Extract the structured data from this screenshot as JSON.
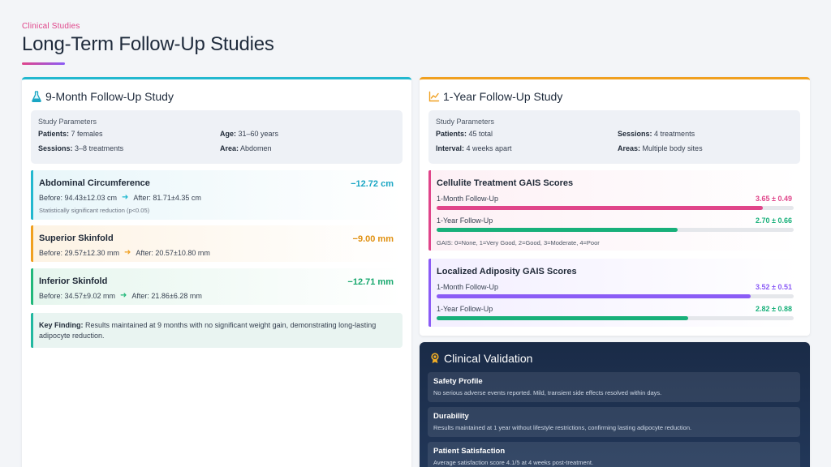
{
  "header": {
    "eyebrow": "Clinical Studies",
    "title": "Long-Term Follow-Up Studies"
  },
  "nine_month": {
    "title": "9-Month Follow-Up Study",
    "icon": "flask-icon",
    "accent": "#22b8cf",
    "params": {
      "title": "Study Parameters",
      "patients_label": "Patients:",
      "patients": "7 females",
      "age_label": "Age:",
      "age": "31–60 years",
      "sessions_label": "Sessions:",
      "sessions": "3–8 treatments",
      "area_label": "Area:",
      "area": "Abdomen"
    },
    "metrics": [
      {
        "name": "Abdominal Circumference",
        "before": "Before: 94.43±12.03 cm",
        "after": "After: 81.71±4.35 cm",
        "note": "Statistically significant reduction (p<0.05)",
        "change": "−12.72 cm",
        "color": "#22b8cf"
      },
      {
        "name": "Superior Skinfold",
        "before": "Before: 29.57±12.30 mm",
        "after": "After: 20.57±10.80 mm",
        "change": "−9.00 mm",
        "color": "#f0a020"
      },
      {
        "name": "Inferior Skinfold",
        "before": "Before: 34.57±9.02 mm",
        "after": "After: 21.86±6.28 mm",
        "change": "−12.71 mm",
        "color": "#22b87a"
      }
    ],
    "key_finding": {
      "label": "Key Finding:",
      "text": " Results maintained at 9 months with no significant weight gain, demonstrating long-lasting adipocyte reduction."
    }
  },
  "one_year": {
    "title": "1-Year Follow-Up Study",
    "icon": "chart-line-icon",
    "accent": "#f0a020",
    "params": {
      "title": "Study Parameters",
      "patients_label": "Patients:",
      "patients": "45 total",
      "sessions_label": "Sessions:",
      "sessions": "4 treatments",
      "interval_label": "Interval:",
      "interval": "4 weeks apart",
      "areas_label": "Areas:",
      "areas": "Multiple body sites"
    },
    "cellulite": {
      "title": "Cellulite Treatment GAIS Scores",
      "color": "#e0458a",
      "rows": [
        {
          "label": "1-Month Follow-Up",
          "value": "3.65 ± 0.49",
          "score": 3.65,
          "color": "#e0458a"
        },
        {
          "label": "1-Year Follow-Up",
          "value": "2.70 ± 0.66",
          "score": 2.7,
          "color": "#18b07a"
        }
      ],
      "note": "GAIS: 0=None, 1=Very Good, 2=Good, 3=Moderate, 4=Poor"
    },
    "adiposity": {
      "title": "Localized Adiposity GAIS Scores",
      "color": "#8b5cf6",
      "rows": [
        {
          "label": "1-Month Follow-Up",
          "value": "3.52 ± 0.51",
          "score": 3.52,
          "color": "#8b5cf6"
        },
        {
          "label": "1-Year Follow-Up",
          "value": "2.82 ± 0.88",
          "score": 2.82,
          "color": "#18b07a"
        }
      ]
    }
  },
  "validation": {
    "title": "Clinical Validation",
    "icon": "award-ribbon-icon",
    "items": [
      {
        "title": "Safety Profile",
        "desc": "No serious adverse events reported. Mild, transient side effects resolved within days."
      },
      {
        "title": "Durability",
        "desc": "Results maintained at 1 year without lifestyle restrictions, confirming lasting adipocyte reduction."
      },
      {
        "title": "Patient Satisfaction",
        "desc": "Average satisfaction score 4.1/5 at 4 weeks post-treatment."
      }
    ]
  }
}
